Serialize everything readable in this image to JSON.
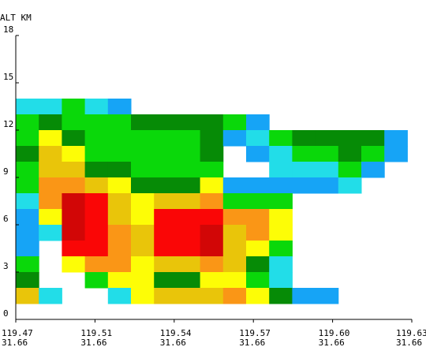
{
  "chart_data": {
    "type": "heatmap",
    "title": "",
    "ylabel": "ALT KM",
    "xlabel": "",
    "ylim": [
      0,
      18
    ],
    "xlim": [
      119.47,
      119.63
    ],
    "yticks": [
      "0",
      "3",
      "6",
      "9",
      "12",
      "15",
      "18"
    ],
    "xticks": [
      {
        "lon": "119.47",
        "lat": "31.66"
      },
      {
        "lon": "119.51",
        "lat": "31.66"
      },
      {
        "lon": "119.54",
        "lat": "31.66"
      },
      {
        "lon": "119.57",
        "lat": "31.66"
      },
      {
        "lon": "119.60",
        "lat": "31.66"
      },
      {
        "lon": "119.63",
        "lat": "31.66"
      }
    ],
    "cell_size_km": 1,
    "columns": 17,
    "rows_from_top_at_km": 14,
    "legend": {
      "C": {
        "name": "cyan",
        "color": "#22dde8"
      },
      "B": {
        "name": "light-blue",
        "color": "#16a4f6"
      },
      "D": {
        "name": "dark-green",
        "color": "#068b06"
      },
      "G": {
        "name": "green",
        "color": "#0ad80a"
      },
      "Y": {
        "name": "yellow",
        "color": "#fdfd06"
      },
      "o": {
        "name": "gold",
        "color": "#e9c50a"
      },
      "O": {
        "name": "orange",
        "color": "#fa9616"
      },
      "R": {
        "name": "red",
        "color": "#fa0606"
      },
      "M": {
        "name": "dark-red",
        "color": "#d20606"
      }
    },
    "grid": [
      "CCGCB............",
      "GDGGGDDDDGB......",
      "GYDGGGGGDBCGDDDDB",
      "DoYGGGGGD.BCGGDGB",
      "GooDDGGGG..CCCGB.",
      "GOOoYDDDYBBBBBC..",
      "COMRoYooOGGG.....",
      "BYMRoYRRROOY.....",
      "BCMROoRRMoOY.....",
      "B.RROoRRMoYG.....",
      "G.YOOYooOoDC.....",
      "D..GYYDDYYGC.....",
      "oC..CYoooOYDBB..."
    ]
  }
}
